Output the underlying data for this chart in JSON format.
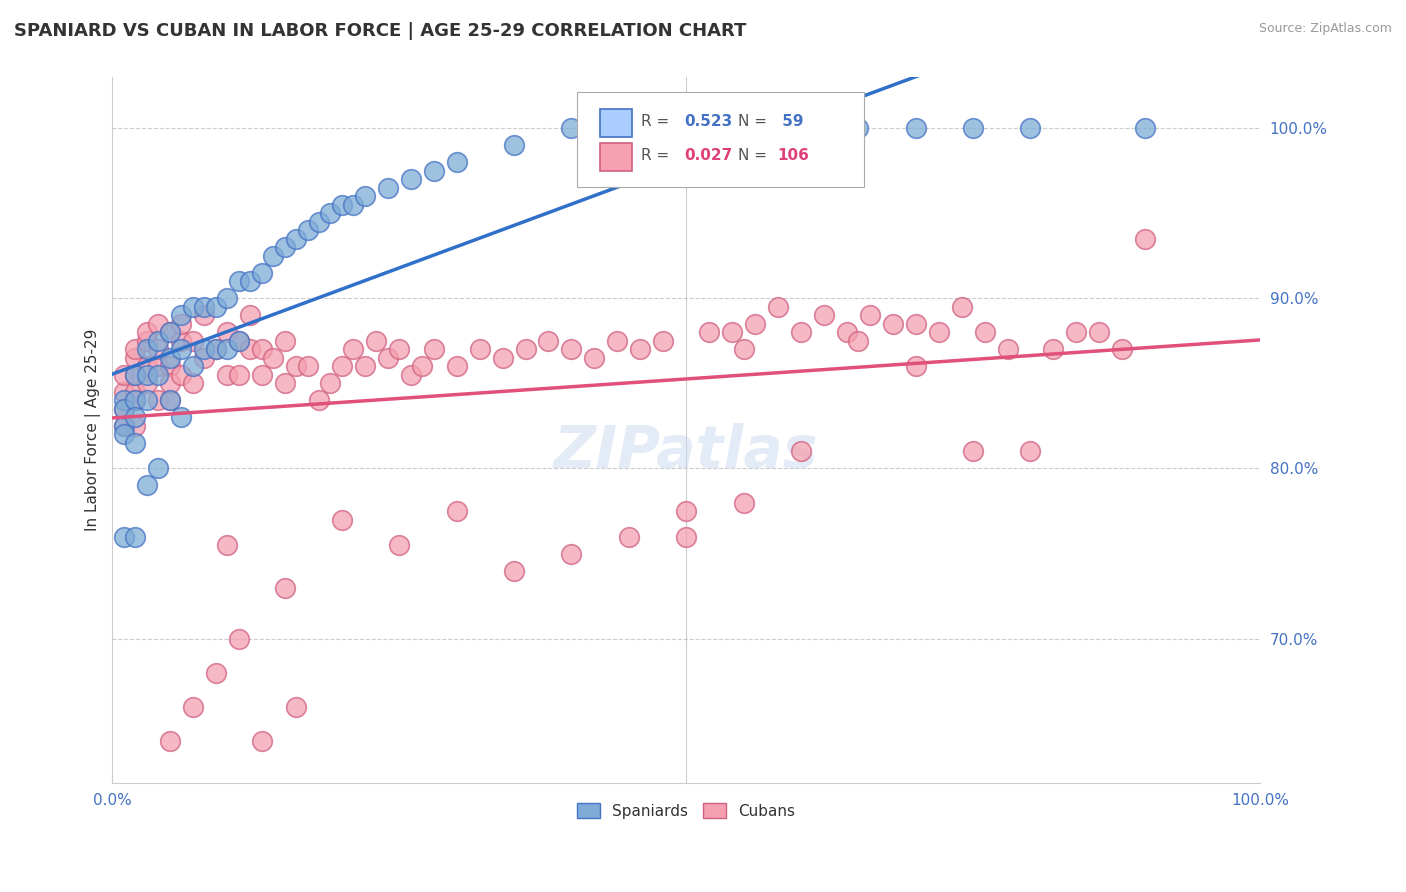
{
  "title": "SPANIARD VS CUBAN IN LABOR FORCE | AGE 25-29 CORRELATION CHART",
  "source": "Source: ZipAtlas.com",
  "ylabel": "In Labor Force | Age 25-29",
  "xlim": [
    0.0,
    1.0
  ],
  "ylim": [
    0.615,
    1.03
  ],
  "yticks": [
    0.7,
    0.8,
    0.9,
    1.0
  ],
  "ytick_labels": [
    "70.0%",
    "80.0%",
    "90.0%",
    "100.0%"
  ],
  "legend_r_spaniard": "0.523",
  "legend_n_spaniard": "59",
  "legend_r_cuban": "0.027",
  "legend_n_cuban": "106",
  "spaniard_color": "#7facd6",
  "cuban_color": "#f4a0b0",
  "trendline_spaniard_color": "#3070c8",
  "trendline_cuban_color": "#e0507a",
  "watermark": "ZIPatlas",
  "spaniard_x": [
    0.01,
    0.01,
    0.01,
    0.01,
    0.01,
    0.02,
    0.02,
    0.02,
    0.02,
    0.02,
    0.03,
    0.03,
    0.03,
    0.03,
    0.04,
    0.04,
    0.04,
    0.05,
    0.05,
    0.05,
    0.06,
    0.06,
    0.06,
    0.07,
    0.07,
    0.08,
    0.08,
    0.09,
    0.09,
    0.1,
    0.1,
    0.11,
    0.11,
    0.12,
    0.13,
    0.14,
    0.15,
    0.16,
    0.17,
    0.18,
    0.19,
    0.2,
    0.21,
    0.22,
    0.24,
    0.26,
    0.28,
    0.3,
    0.35,
    0.4,
    0.45,
    0.5,
    0.55,
    0.6,
    0.65,
    0.7,
    0.75,
    0.8,
    0.9
  ],
  "spaniard_y": [
    0.84,
    0.835,
    0.825,
    0.82,
    0.76,
    0.855,
    0.84,
    0.83,
    0.815,
    0.76,
    0.87,
    0.855,
    0.84,
    0.79,
    0.875,
    0.855,
    0.8,
    0.88,
    0.865,
    0.84,
    0.89,
    0.87,
    0.83,
    0.895,
    0.86,
    0.895,
    0.87,
    0.895,
    0.87,
    0.9,
    0.87,
    0.91,
    0.875,
    0.91,
    0.915,
    0.925,
    0.93,
    0.935,
    0.94,
    0.945,
    0.95,
    0.955,
    0.955,
    0.96,
    0.965,
    0.97,
    0.975,
    0.98,
    0.99,
    1.0,
    1.0,
    1.0,
    1.0,
    1.0,
    1.0,
    1.0,
    1.0,
    1.0,
    1.0
  ],
  "cuban_x": [
    0.01,
    0.01,
    0.01,
    0.01,
    0.02,
    0.02,
    0.02,
    0.02,
    0.02,
    0.02,
    0.03,
    0.03,
    0.03,
    0.03,
    0.04,
    0.04,
    0.04,
    0.04,
    0.05,
    0.05,
    0.05,
    0.05,
    0.06,
    0.06,
    0.06,
    0.07,
    0.07,
    0.08,
    0.08,
    0.09,
    0.1,
    0.1,
    0.11,
    0.11,
    0.12,
    0.12,
    0.13,
    0.13,
    0.14,
    0.15,
    0.15,
    0.16,
    0.17,
    0.18,
    0.19,
    0.2,
    0.21,
    0.22,
    0.23,
    0.24,
    0.25,
    0.26,
    0.27,
    0.28,
    0.3,
    0.32,
    0.34,
    0.36,
    0.38,
    0.4,
    0.42,
    0.44,
    0.46,
    0.48,
    0.5,
    0.52,
    0.54,
    0.56,
    0.58,
    0.6,
    0.62,
    0.64,
    0.66,
    0.68,
    0.7,
    0.72,
    0.74,
    0.76,
    0.78,
    0.8,
    0.82,
    0.84,
    0.86,
    0.88,
    0.9,
    0.55,
    0.6,
    0.65,
    0.7,
    0.75,
    0.1,
    0.15,
    0.2,
    0.25,
    0.3,
    0.35,
    0.4,
    0.45,
    0.5,
    0.55,
    0.05,
    0.07,
    0.09,
    0.11,
    0.13,
    0.16
  ],
  "cuban_y": [
    0.845,
    0.835,
    0.855,
    0.825,
    0.865,
    0.845,
    0.855,
    0.87,
    0.84,
    0.825,
    0.875,
    0.85,
    0.86,
    0.88,
    0.885,
    0.86,
    0.87,
    0.84,
    0.86,
    0.84,
    0.88,
    0.85,
    0.875,
    0.855,
    0.885,
    0.875,
    0.85,
    0.865,
    0.89,
    0.87,
    0.855,
    0.88,
    0.875,
    0.855,
    0.87,
    0.89,
    0.87,
    0.855,
    0.865,
    0.85,
    0.875,
    0.86,
    0.86,
    0.84,
    0.85,
    0.86,
    0.87,
    0.86,
    0.875,
    0.865,
    0.87,
    0.855,
    0.86,
    0.87,
    0.86,
    0.87,
    0.865,
    0.87,
    0.875,
    0.87,
    0.865,
    0.875,
    0.87,
    0.875,
    0.76,
    0.88,
    0.88,
    0.885,
    0.895,
    0.88,
    0.89,
    0.88,
    0.89,
    0.885,
    0.885,
    0.88,
    0.895,
    0.88,
    0.87,
    0.81,
    0.87,
    0.88,
    0.88,
    0.87,
    0.935,
    0.87,
    0.81,
    0.875,
    0.86,
    0.81,
    0.755,
    0.73,
    0.77,
    0.755,
    0.775,
    0.74,
    0.75,
    0.76,
    0.775,
    0.78,
    0.64,
    0.66,
    0.68,
    0.7,
    0.64,
    0.66
  ]
}
